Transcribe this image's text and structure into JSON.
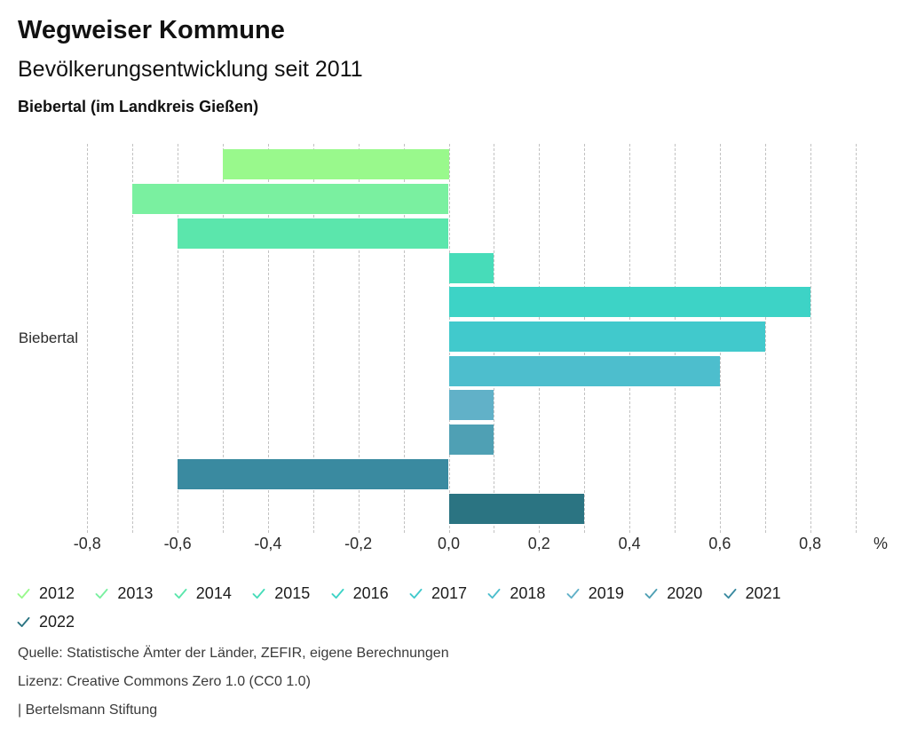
{
  "header": {
    "title": "Wegweiser Kommune",
    "subtitle": "Bevölkerungsentwicklung seit 2011",
    "location": "Biebertal (im Landkreis Gießen)"
  },
  "chart_data": {
    "type": "bar",
    "orientation": "horizontal",
    "title": "Bevölkerungsentwicklung seit 2011",
    "category_label": "Biebertal",
    "unit": "%",
    "x_axis_suffix": "%",
    "xlim": [
      -0.9,
      0.95
    ],
    "gridline_range": [
      -0.8,
      0.9
    ],
    "gridline_step": 0.1,
    "grid": "dashed-vertical",
    "legend_position": "bottom",
    "series": [
      {
        "name": "2012",
        "value": -0.5,
        "color": "#99F98C"
      },
      {
        "name": "2013",
        "value": -0.7,
        "color": "#7AF0A0"
      },
      {
        "name": "2014",
        "value": -0.6,
        "color": "#5BE6AC"
      },
      {
        "name": "2015",
        "value": 0.1,
        "color": "#47DCB9"
      },
      {
        "name": "2016",
        "value": 0.8,
        "color": "#3DD3C6"
      },
      {
        "name": "2017",
        "value": 0.7,
        "color": "#41C9CC"
      },
      {
        "name": "2018",
        "value": 0.6,
        "color": "#4DBECD"
      },
      {
        "name": "2019",
        "value": 0.1,
        "color": "#61B1C8"
      },
      {
        "name": "2020",
        "value": 0.1,
        "color": "#4FA0B4"
      },
      {
        "name": "2021",
        "value": -0.6,
        "color": "#3A8AA0"
      },
      {
        "name": "2022",
        "value": 0.3,
        "color": "#2B7482"
      }
    ],
    "x_ticks": [
      {
        "label": "-0,8",
        "value": -0.8
      },
      {
        "label": "-0,6",
        "value": -0.6
      },
      {
        "label": "-0,4",
        "value": -0.4
      },
      {
        "label": "-0,2",
        "value": -0.2
      },
      {
        "label": "0,0",
        "value": 0.0
      },
      {
        "label": "0,2",
        "value": 0.2
      },
      {
        "label": "0,4",
        "value": 0.4
      },
      {
        "label": "0,6",
        "value": 0.6
      },
      {
        "label": "0,8",
        "value": 0.8
      }
    ]
  },
  "footer": {
    "source": "Quelle: Statistische Ämter der Länder, ZEFIR, eigene Berechnungen",
    "license": "Lizenz: Creative Commons Zero 1.0 (CC0 1.0)",
    "brand": "| Bertelsmann Stiftung"
  }
}
